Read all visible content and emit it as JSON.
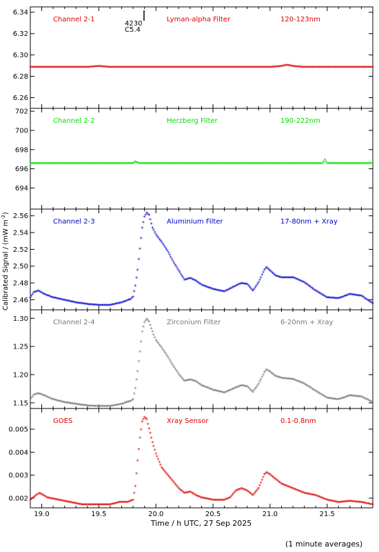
{
  "figure": {
    "xlabel": "Time / h UTC, 27 Sep 2025",
    "ylabel": "Calibrated Signal / (mW m",
    "ylabel_sup": "-2",
    "ylabel_close": ")",
    "footnote": "(1 minute averages)",
    "event_marker": {
      "x": 19.9,
      "label_top": "4230",
      "label_bottom": "C5.4"
    }
  },
  "chart_data": [
    {
      "type": "scatter",
      "panel": "channel-2-1",
      "labels": [
        "Channel 2-1",
        "Lyman-alpha Filter",
        "120-123nm"
      ],
      "color": "#dd0000",
      "x_range": [
        18.9,
        21.9
      ],
      "ylim": [
        6.25,
        6.345
      ],
      "yticks": [
        6.26,
        6.28,
        6.3,
        6.32,
        6.34
      ],
      "ytick_labels": [
        "6.26",
        "6.28",
        "6.30",
        "6.32",
        "6.34"
      ],
      "points": [
        [
          18.9,
          6.288
        ],
        [
          19.2,
          6.288
        ],
        [
          19.4,
          6.288
        ],
        [
          19.5,
          6.289
        ],
        [
          19.6,
          6.288
        ],
        [
          19.9,
          6.288
        ],
        [
          20.3,
          6.288
        ],
        [
          20.7,
          6.288
        ],
        [
          21.0,
          6.288
        ],
        [
          21.1,
          6.289
        ],
        [
          21.15,
          6.29
        ],
        [
          21.2,
          6.289
        ],
        [
          21.3,
          6.288
        ],
        [
          21.6,
          6.288
        ],
        [
          21.9,
          6.288
        ]
      ]
    },
    {
      "type": "scatter",
      "panel": "channel-2-2",
      "labels": [
        "Channel 2-2",
        "Herzberg Filter",
        "190-222nm"
      ],
      "color": "#00dd00",
      "x_range": [
        18.9,
        21.9
      ],
      "ylim": [
        691.8,
        702.3
      ],
      "yticks": [
        694,
        696,
        698,
        700,
        702
      ],
      "ytick_labels": [
        "694",
        "696",
        "698",
        "700",
        "702"
      ],
      "points": [
        [
          18.9,
          696.5
        ],
        [
          19.5,
          696.5
        ],
        [
          19.8,
          696.5
        ],
        [
          19.82,
          696.7
        ],
        [
          19.85,
          696.5
        ],
        [
          20.5,
          696.5
        ],
        [
          21.0,
          696.5
        ],
        [
          21.46,
          696.5
        ],
        [
          21.48,
          696.9
        ],
        [
          21.5,
          696.5
        ],
        [
          21.9,
          696.5
        ]
      ]
    },
    {
      "type": "scatter",
      "panel": "channel-2-3",
      "labels": [
        "Channel 2-3",
        "Aluminium Filter",
        "17-80nm + Xray"
      ],
      "color": "#0000cc",
      "x_range": [
        18.9,
        21.9
      ],
      "ylim": [
        2.448,
        2.568
      ],
      "yticks": [
        2.46,
        2.48,
        2.5,
        2.52,
        2.54,
        2.56
      ],
      "ytick_labels": [
        "2.46",
        "2.48",
        "2.50",
        "2.52",
        "2.54",
        "2.56"
      ],
      "points": [
        [
          18.9,
          2.462
        ],
        [
          18.93,
          2.468
        ],
        [
          18.97,
          2.47
        ],
        [
          19.02,
          2.466
        ],
        [
          19.1,
          2.462
        ],
        [
          19.2,
          2.459
        ],
        [
          19.3,
          2.456
        ],
        [
          19.4,
          2.454
        ],
        [
          19.5,
          2.453
        ],
        [
          19.6,
          2.453
        ],
        [
          19.7,
          2.456
        ],
        [
          19.78,
          2.46
        ],
        [
          19.8,
          2.463
        ],
        [
          19.82,
          2.476
        ],
        [
          19.84,
          2.495
        ],
        [
          19.86,
          2.52
        ],
        [
          19.88,
          2.545
        ],
        [
          19.9,
          2.558
        ],
        [
          19.92,
          2.563
        ],
        [
          19.94,
          2.56
        ],
        [
          19.97,
          2.545
        ],
        [
          20.0,
          2.537
        ],
        [
          20.05,
          2.528
        ],
        [
          20.1,
          2.518
        ],
        [
          20.15,
          2.505
        ],
        [
          20.2,
          2.494
        ],
        [
          20.25,
          2.483
        ],
        [
          20.3,
          2.485
        ],
        [
          20.35,
          2.482
        ],
        [
          20.4,
          2.477
        ],
        [
          20.5,
          2.472
        ],
        [
          20.6,
          2.469
        ],
        [
          20.7,
          2.476
        ],
        [
          20.75,
          2.479
        ],
        [
          20.8,
          2.478
        ],
        [
          20.85,
          2.47
        ],
        [
          20.9,
          2.48
        ],
        [
          20.95,
          2.495
        ],
        [
          20.97,
          2.498
        ],
        [
          21.0,
          2.494
        ],
        [
          21.05,
          2.488
        ],
        [
          21.1,
          2.486
        ],
        [
          21.2,
          2.486
        ],
        [
          21.3,
          2.48
        ],
        [
          21.4,
          2.47
        ],
        [
          21.5,
          2.462
        ],
        [
          21.6,
          2.461
        ],
        [
          21.7,
          2.466
        ],
        [
          21.8,
          2.464
        ],
        [
          21.9,
          2.455
        ]
      ]
    },
    {
      "type": "scatter",
      "panel": "channel-2-4",
      "labels": [
        "Channel 2-4",
        "Zirconium Filter",
        "6-20nm + Xray"
      ],
      "color": "#777777",
      "x_range": [
        18.9,
        21.9
      ],
      "ylim": [
        1.14,
        1.315
      ],
      "yticks": [
        1.15,
        1.2,
        1.25,
        1.3
      ],
      "ytick_labels": [
        "1.15",
        "1.20",
        "1.25",
        "1.30"
      ],
      "points": [
        [
          18.9,
          1.155
        ],
        [
          18.93,
          1.163
        ],
        [
          18.97,
          1.166
        ],
        [
          19.02,
          1.162
        ],
        [
          19.1,
          1.155
        ],
        [
          19.2,
          1.15
        ],
        [
          19.3,
          1.147
        ],
        [
          19.4,
          1.144
        ],
        [
          19.5,
          1.143
        ],
        [
          19.6,
          1.143
        ],
        [
          19.7,
          1.147
        ],
        [
          19.78,
          1.152
        ],
        [
          19.8,
          1.155
        ],
        [
          19.82,
          1.175
        ],
        [
          19.84,
          1.205
        ],
        [
          19.86,
          1.24
        ],
        [
          19.88,
          1.275
        ],
        [
          19.9,
          1.292
        ],
        [
          19.92,
          1.298
        ],
        [
          19.94,
          1.293
        ],
        [
          19.97,
          1.275
        ],
        [
          20.0,
          1.26
        ],
        [
          20.05,
          1.247
        ],
        [
          20.1,
          1.232
        ],
        [
          20.15,
          1.215
        ],
        [
          20.2,
          1.2
        ],
        [
          20.25,
          1.188
        ],
        [
          20.3,
          1.19
        ],
        [
          20.35,
          1.187
        ],
        [
          20.4,
          1.18
        ],
        [
          20.5,
          1.172
        ],
        [
          20.6,
          1.167
        ],
        [
          20.7,
          1.176
        ],
        [
          20.75,
          1.18
        ],
        [
          20.8,
          1.178
        ],
        [
          20.85,
          1.168
        ],
        [
          20.9,
          1.183
        ],
        [
          20.95,
          1.203
        ],
        [
          20.97,
          1.208
        ],
        [
          21.0,
          1.204
        ],
        [
          21.05,
          1.196
        ],
        [
          21.1,
          1.193
        ],
        [
          21.2,
          1.191
        ],
        [
          21.3,
          1.183
        ],
        [
          21.4,
          1.17
        ],
        [
          21.5,
          1.158
        ],
        [
          21.6,
          1.155
        ],
        [
          21.7,
          1.162
        ],
        [
          21.8,
          1.16
        ],
        [
          21.9,
          1.15
        ]
      ]
    },
    {
      "type": "scatter",
      "panel": "goes",
      "labels": [
        "GOES",
        "Xray Sensor",
        "0.1-0.8nm"
      ],
      "color": "#dd0000",
      "x_range": [
        18.9,
        21.9
      ],
      "ylim": [
        0.00158,
        0.0059
      ],
      "yticks": [
        0.002,
        0.003,
        0.004,
        0.005
      ],
      "ytick_labels": [
        "0.002",
        "0.003",
        "0.004",
        "0.005"
      ],
      "points": [
        [
          18.9,
          0.0019
        ],
        [
          18.95,
          0.0021
        ],
        [
          18.98,
          0.0022
        ],
        [
          19.05,
          0.002
        ],
        [
          19.15,
          0.0019
        ],
        [
          19.25,
          0.0018
        ],
        [
          19.35,
          0.0017
        ],
        [
          19.5,
          0.0017
        ],
        [
          19.6,
          0.0017
        ],
        [
          19.68,
          0.0018
        ],
        [
          19.75,
          0.0018
        ],
        [
          19.8,
          0.0019
        ],
        [
          19.82,
          0.0025
        ],
        [
          19.84,
          0.0036
        ],
        [
          19.86,
          0.0046
        ],
        [
          19.88,
          0.0053
        ],
        [
          19.9,
          0.0055
        ],
        [
          19.92,
          0.0054
        ],
        [
          19.94,
          0.005
        ],
        [
          19.97,
          0.0044
        ],
        [
          20.0,
          0.0039
        ],
        [
          20.05,
          0.0033
        ],
        [
          20.1,
          0.003
        ],
        [
          20.15,
          0.0027
        ],
        [
          20.2,
          0.0024
        ],
        [
          20.25,
          0.0022
        ],
        [
          20.3,
          0.00225
        ],
        [
          20.35,
          0.0021
        ],
        [
          20.4,
          0.002
        ],
        [
          20.5,
          0.0019
        ],
        [
          20.6,
          0.0019
        ],
        [
          20.65,
          0.002
        ],
        [
          20.7,
          0.0023
        ],
        [
          20.75,
          0.0024
        ],
        [
          20.8,
          0.0023
        ],
        [
          20.85,
          0.0021
        ],
        [
          20.9,
          0.0024
        ],
        [
          20.95,
          0.003
        ],
        [
          20.97,
          0.0031
        ],
        [
          21.0,
          0.003
        ],
        [
          21.05,
          0.0028
        ],
        [
          21.1,
          0.0026
        ],
        [
          21.2,
          0.0024
        ],
        [
          21.3,
          0.0022
        ],
        [
          21.4,
          0.0021
        ],
        [
          21.5,
          0.0019
        ],
        [
          21.6,
          0.0018
        ],
        [
          21.7,
          0.00185
        ],
        [
          21.8,
          0.0018
        ],
        [
          21.9,
          0.0017
        ]
      ]
    }
  ],
  "x_axis": {
    "ticks": [
      19.0,
      19.5,
      20.0,
      20.5,
      21.0,
      21.5
    ],
    "tick_labels": [
      "19.0",
      "19.5",
      "20.0",
      "20.5",
      "21.0",
      "21.5"
    ],
    "minor_step": 0.1
  }
}
